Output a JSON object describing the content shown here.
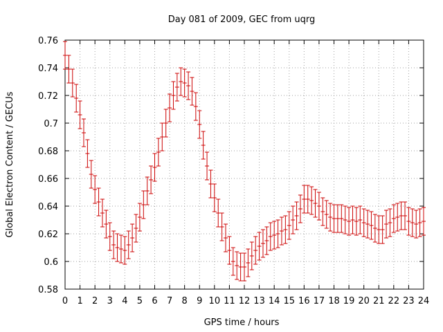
{
  "chart_data": {
    "type": "line",
    "title": "Day 081 of 2009, GEC from uqrg",
    "xlabel": "GPS time / hours",
    "ylabel": "Global Electron Content / GECUs",
    "xlim": [
      0,
      24
    ],
    "ylim": [
      0.58,
      0.76
    ],
    "grid": true,
    "xticks": [
      "0",
      "1",
      "2",
      "3",
      "4",
      "5",
      "6",
      "7",
      "8",
      "9",
      "10",
      "11",
      "12",
      "13",
      "14",
      "15",
      "16",
      "17",
      "18",
      "19",
      "20",
      "21",
      "22",
      "23",
      "24"
    ],
    "yticks": [
      "0.58",
      "0.6",
      "0.62",
      "0.64",
      "0.66",
      "0.68",
      "0.7",
      "0.72",
      "0.74",
      "0.76"
    ],
    "error_half_width": 0.01,
    "series": [
      {
        "name": "GEC",
        "color": "#cc0000",
        "style": "errorbars",
        "x": [
          0.0,
          0.25,
          0.5,
          0.75,
          1.0,
          1.25,
          1.5,
          1.75,
          2.0,
          2.25,
          2.5,
          2.75,
          3.0,
          3.25,
          3.5,
          3.75,
          4.0,
          4.25,
          4.5,
          4.75,
          5.0,
          5.25,
          5.5,
          5.75,
          6.0,
          6.25,
          6.5,
          6.75,
          7.0,
          7.25,
          7.5,
          7.75,
          8.0,
          8.25,
          8.5,
          8.75,
          9.0,
          9.25,
          9.5,
          9.75,
          10.0,
          10.25,
          10.5,
          10.75,
          11.0,
          11.25,
          11.5,
          11.75,
          12.0,
          12.25,
          12.5,
          12.75,
          13.0,
          13.25,
          13.5,
          13.75,
          14.0,
          14.25,
          14.5,
          14.75,
          15.0,
          15.25,
          15.5,
          15.75,
          16.0,
          16.25,
          16.5,
          16.75,
          17.0,
          17.25,
          17.5,
          17.75,
          18.0,
          18.25,
          18.5,
          18.75,
          19.0,
          19.25,
          19.5,
          19.75,
          20.0,
          20.25,
          20.5,
          20.75,
          21.0,
          21.25,
          21.5,
          21.75,
          22.0,
          22.25,
          22.5,
          22.75,
          23.0,
          23.25,
          23.5,
          23.75,
          24.0
        ],
        "values": [
          0.749,
          0.739,
          0.729,
          0.718,
          0.706,
          0.693,
          0.678,
          0.663,
          0.652,
          0.643,
          0.635,
          0.627,
          0.618,
          0.612,
          0.61,
          0.609,
          0.608,
          0.612,
          0.617,
          0.624,
          0.632,
          0.641,
          0.651,
          0.659,
          0.668,
          0.679,
          0.69,
          0.7,
          0.711,
          0.72,
          0.726,
          0.73,
          0.729,
          0.727,
          0.723,
          0.712,
          0.699,
          0.684,
          0.669,
          0.656,
          0.646,
          0.635,
          0.625,
          0.617,
          0.608,
          0.6,
          0.597,
          0.596,
          0.596,
          0.599,
          0.604,
          0.608,
          0.611,
          0.613,
          0.615,
          0.618,
          0.619,
          0.62,
          0.622,
          0.623,
          0.626,
          0.63,
          0.633,
          0.638,
          0.645,
          0.645,
          0.644,
          0.642,
          0.64,
          0.636,
          0.634,
          0.632,
          0.631,
          0.631,
          0.631,
          0.63,
          0.629,
          0.63,
          0.629,
          0.63,
          0.628,
          0.627,
          0.626,
          0.624,
          0.623,
          0.623,
          0.627,
          0.628,
          0.631,
          0.632,
          0.633,
          0.633,
          0.629,
          0.628,
          0.627,
          0.628,
          0.629
        ]
      }
    ]
  }
}
